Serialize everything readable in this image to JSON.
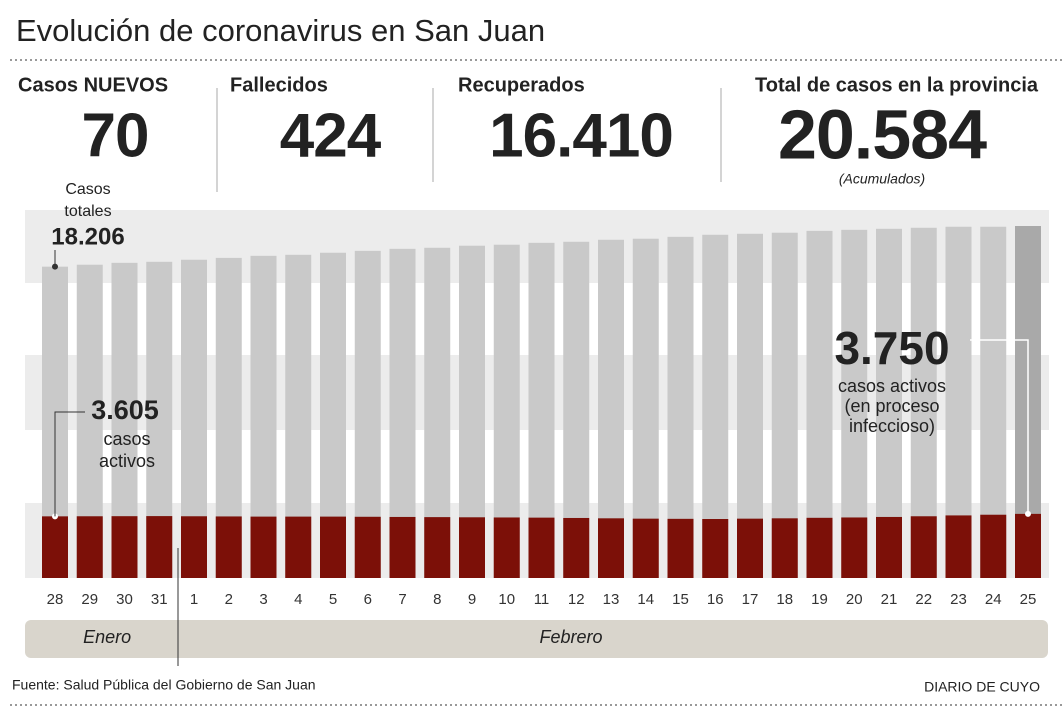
{
  "title": "Evolución de coronavirus en San Juan",
  "stats": [
    {
      "label": "Casos NUEVOS",
      "value": "70",
      "color": "#d7142a"
    },
    {
      "label": "Fallecidos",
      "value": "424",
      "color": "#222222"
    },
    {
      "label": "Recuperados",
      "value": "16.410",
      "color": "#1a96d4"
    },
    {
      "label": "Total de casos en la provincia",
      "value": "20.584",
      "color": "#d7142a",
      "note": "(Acumulados)"
    }
  ],
  "chart_data": {
    "type": "bar",
    "categories": [
      "28",
      "29",
      "30",
      "31",
      "1",
      "2",
      "3",
      "4",
      "5",
      "6",
      "7",
      "8",
      "9",
      "10",
      "11",
      "12",
      "13",
      "14",
      "15",
      "16",
      "17",
      "18",
      "19",
      "20",
      "21",
      "22",
      "23",
      "24",
      "25"
    ],
    "months": [
      "Enero",
      "Febrero"
    ],
    "ylim": [
      0,
      20584
    ],
    "series": [
      {
        "color": "#c9c9c9",
        "highlight_color": "#a9a9a9",
        "values": [
          18206,
          18320,
          18430,
          18490,
          18610,
          18720,
          18840,
          18900,
          19020,
          19130,
          19250,
          19310,
          19430,
          19490,
          19600,
          19660,
          19780,
          19840,
          19950,
          20070,
          20130,
          20190,
          20300,
          20360,
          20420,
          20480,
          20540,
          20540,
          20584
        ],
        "value_labels": [
          "18.206",
          null,
          null,
          null,
          null,
          null,
          null,
          null,
          null,
          null,
          null,
          null,
          null,
          null,
          null,
          null,
          null,
          null,
          null,
          null,
          null,
          null,
          null,
          null,
          null,
          null,
          null,
          null,
          null
        ]
      },
      {
        "color": "#7c1008",
        "values": [
          3605,
          3610,
          3615,
          3620,
          3610,
          3600,
          3590,
          3590,
          3590,
          3580,
          3570,
          3560,
          3550,
          3540,
          3530,
          3510,
          3490,
          3470,
          3460,
          3450,
          3470,
          3490,
          3520,
          3540,
          3570,
          3610,
          3660,
          3700,
          3750
        ],
        "value_labels": [
          "3.605",
          null,
          null,
          null,
          null,
          null,
          null,
          null,
          null,
          null,
          null,
          null,
          null,
          null,
          null,
          null,
          null,
          null,
          null,
          null,
          null,
          null,
          null,
          null,
          null,
          null,
          null,
          null,
          "3.750"
        ]
      }
    ],
    "total_label": [
      "Casos",
      "totales"
    ],
    "first_active_text": [
      "casos",
      "activos"
    ],
    "last_active_text": [
      "casos activos",
      "(en proceso",
      "infeccioso)"
    ]
  },
  "source": "Fuente: Salud Pública del Gobierno de San Juan",
  "brand": "DIARIO DE CUYO"
}
